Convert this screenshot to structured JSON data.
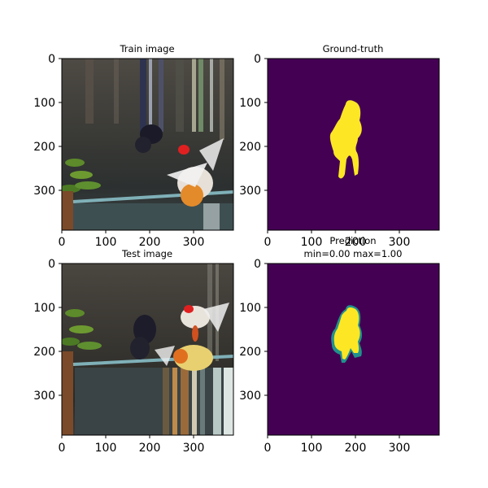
{
  "figure": {
    "panels": [
      {
        "id": "train",
        "kind": "photo",
        "title_lines": [
          "Train image"
        ],
        "x_ticks": [
          "0",
          "100",
          "200",
          "300"
        ],
        "y_ticks": [
          "0",
          "100",
          "200",
          "300"
        ]
      },
      {
        "id": "ground_truth",
        "kind": "mask",
        "title_lines": [
          "Ground-truth"
        ],
        "x_ticks": [
          "0",
          "100",
          "200",
          "300"
        ],
        "y_ticks": [
          "0",
          "100",
          "200",
          "300"
        ]
      },
      {
        "id": "test",
        "kind": "photo",
        "title_lines": [
          "Test image"
        ],
        "x_ticks": [
          "0",
          "100",
          "200",
          "300"
        ],
        "y_ticks": [
          "0",
          "100",
          "200",
          "300"
        ]
      },
      {
        "id": "prediction",
        "kind": "mask",
        "title_lines": [
          "Prediction",
          "min=0.00 max=1.00"
        ],
        "x_ticks": [
          "0",
          "100",
          "200",
          "300"
        ],
        "y_ticks": [
          "0",
          "100",
          "200",
          "300"
        ]
      }
    ],
    "colors": {
      "mask_background": "#440154",
      "mask_foreground": "#fde725",
      "mask_edge": "#21918c",
      "photo_dark": "#2a2d2a"
    }
  }
}
